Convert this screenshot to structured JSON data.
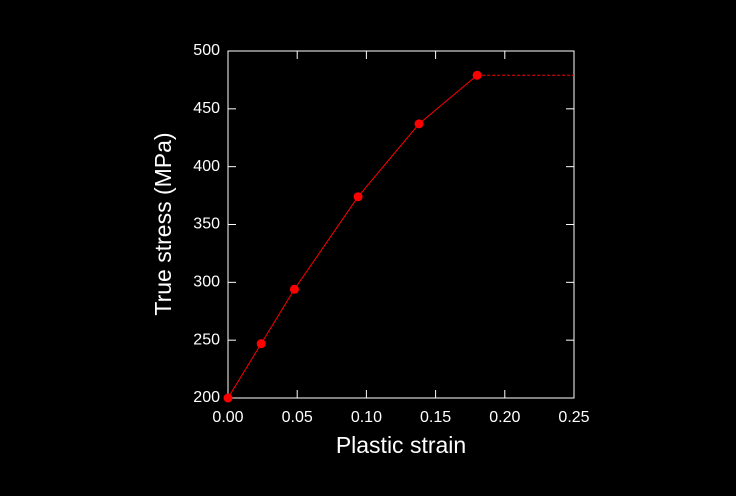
{
  "chart_data": {
    "type": "line",
    "x_label": "Plastic strain",
    "y_label": "True stress (MPa)",
    "xlim": [
      0,
      0.25
    ],
    "ylim": [
      200,
      500
    ],
    "xticks": [
      {
        "value": 0,
        "label": "0.00"
      },
      {
        "value": 0.05,
        "label": "0.05"
      },
      {
        "value": 0.1,
        "label": "0.10"
      },
      {
        "value": 0.15,
        "label": "0.15"
      },
      {
        "value": 0.2,
        "label": "0.20"
      },
      {
        "value": 0.25,
        "label": "0.25"
      }
    ],
    "yticks": [
      200,
      250,
      300,
      350,
      400,
      450,
      500
    ],
    "grid": false,
    "series": [
      {
        "color": "#ff0000",
        "style": "solid",
        "markers": true,
        "x": [
          0,
          0.024,
          0.048,
          0.094,
          0.138,
          0.18
        ],
        "values": [
          200,
          247,
          294,
          374,
          437,
          479
        ]
      },
      {
        "color": "#ff0000",
        "style": "dashed",
        "markers": false,
        "x": [
          0.18,
          0.25
        ],
        "values": [
          479,
          479
        ]
      }
    ]
  }
}
